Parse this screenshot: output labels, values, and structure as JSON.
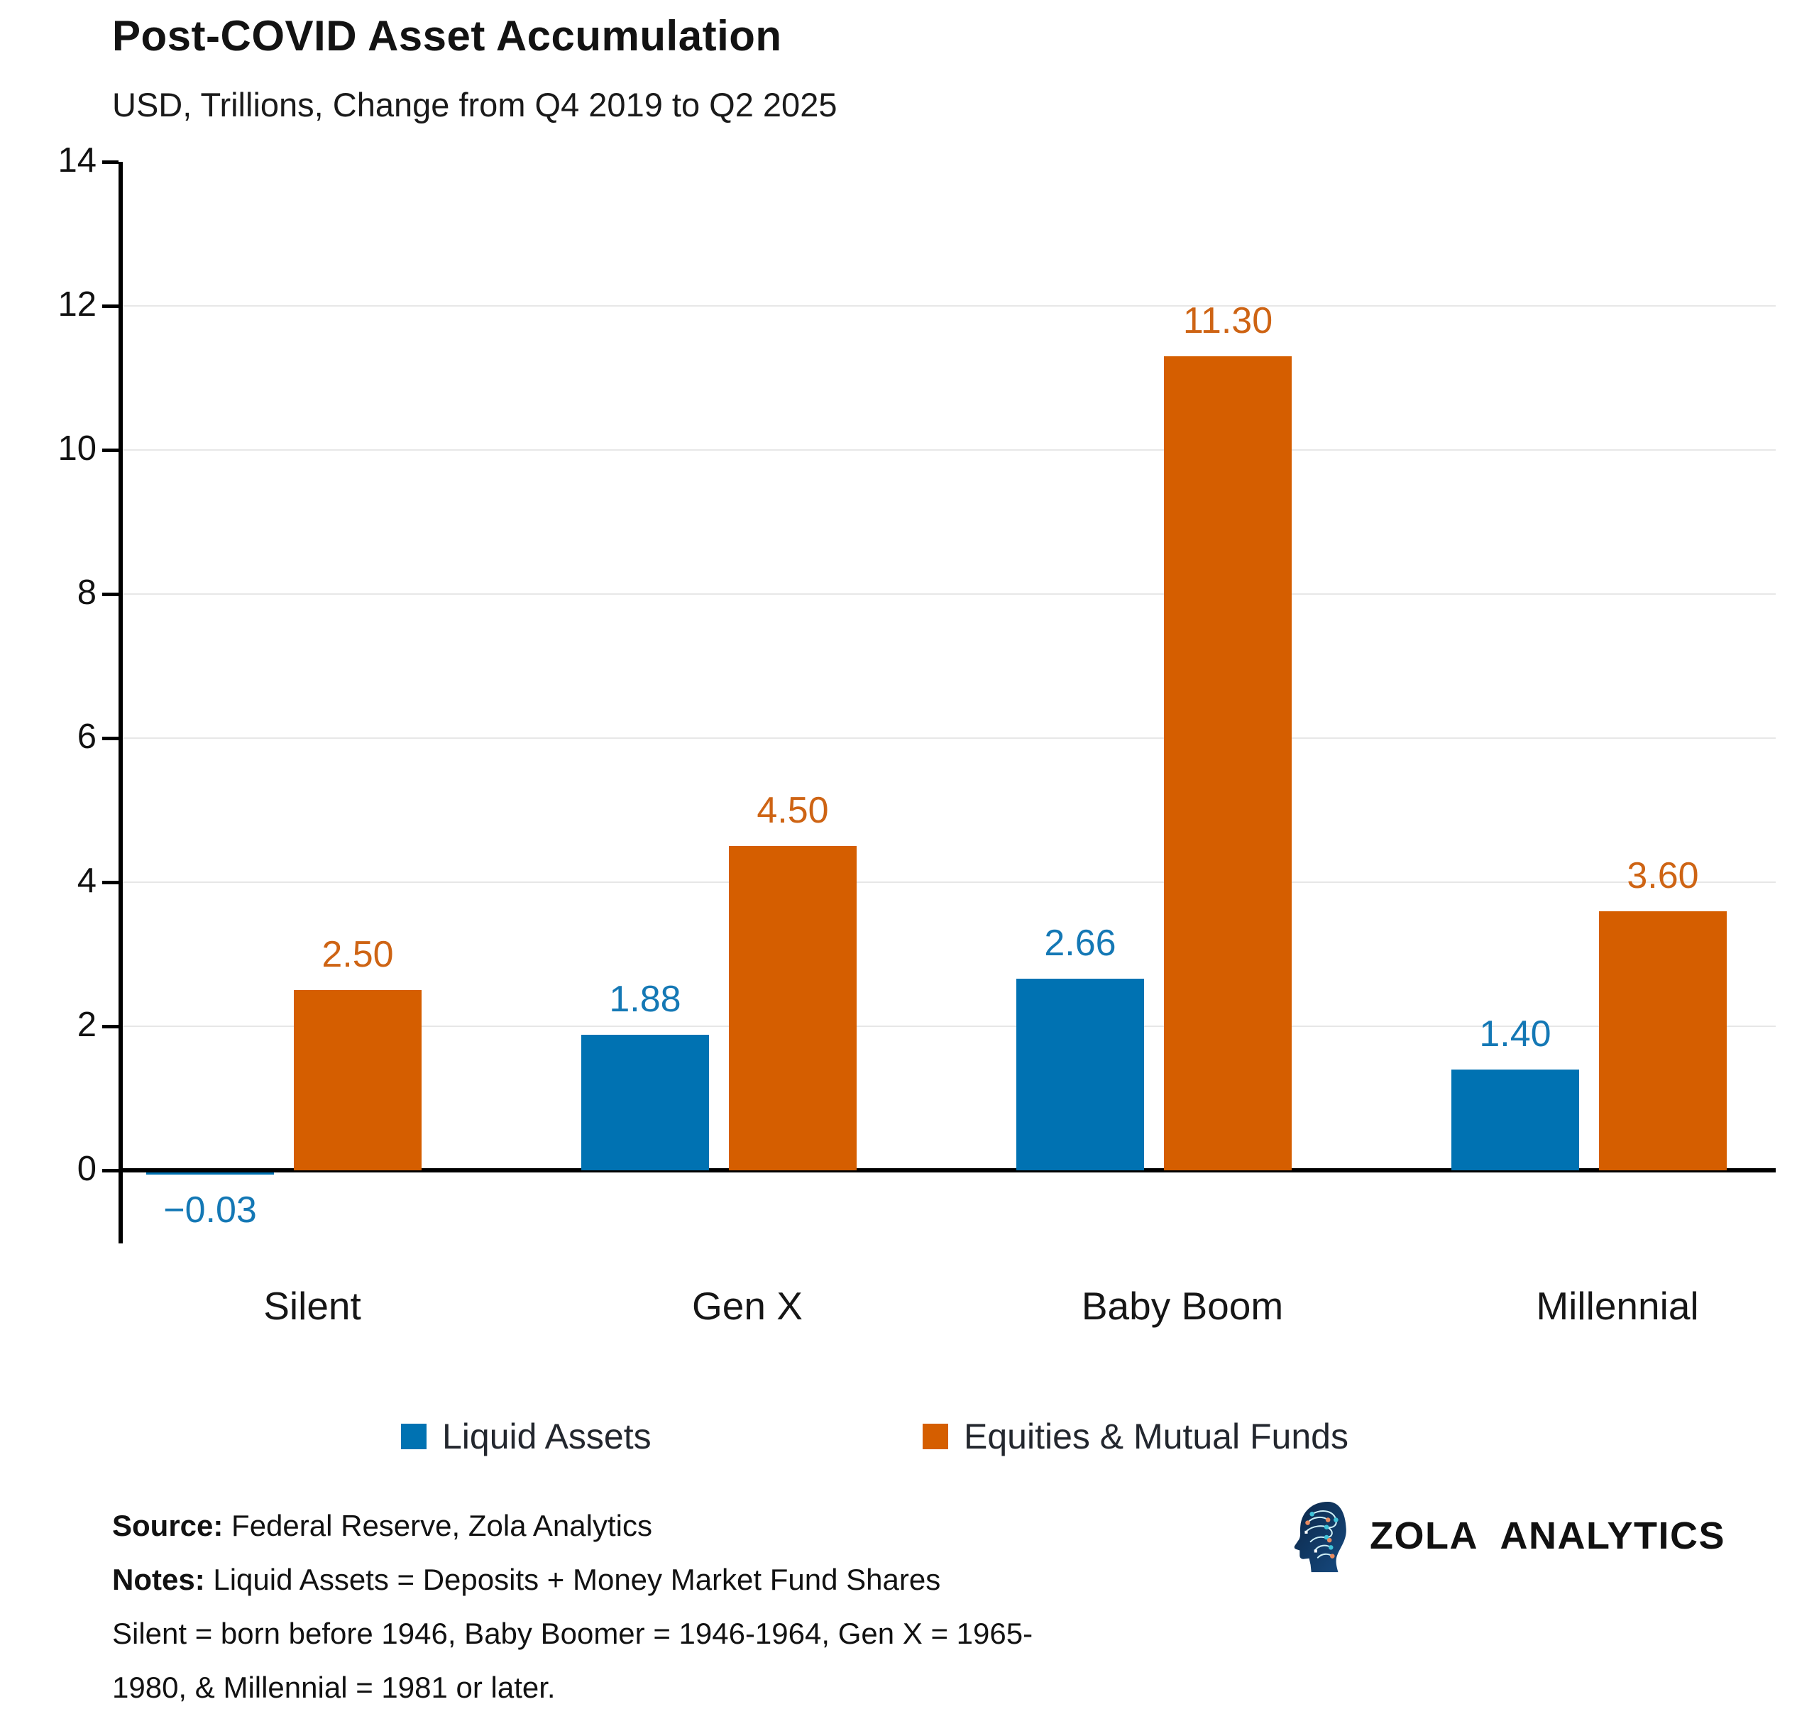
{
  "title": "Post-COVID Asset Accumulation",
  "subtitle": "USD, Trillions, Change from Q4 2019 to Q2 2025",
  "chart_data": {
    "type": "bar",
    "categories": [
      "Silent",
      "Gen X",
      "Baby Boom",
      "Millennial"
    ],
    "series": [
      {
        "name": "Liquid Assets",
        "color": "#0072B2",
        "values": [
          -0.03,
          1.88,
          2.66,
          1.4
        ],
        "labels": [
          "−0.03",
          "1.88",
          "2.66",
          "1.40"
        ]
      },
      {
        "name": "Equities & Mutual Funds",
        "color": "#D55E00",
        "values": [
          2.5,
          4.5,
          11.3,
          3.6
        ],
        "labels": [
          "2.50",
          "4.50",
          "11.30",
          "3.60"
        ]
      }
    ],
    "ylim": [
      0,
      14
    ],
    "yticks": [
      0,
      2,
      4,
      6,
      8,
      10,
      12,
      14
    ],
    "grid": "horizontal-light-gray",
    "legend_position": "bottom",
    "bar_value_labels": true
  },
  "legend": {
    "items": [
      {
        "label": "Liquid Assets",
        "color": "#0072B2"
      },
      {
        "label": "Equities & Mutual Funds",
        "color": "#D55E00"
      }
    ]
  },
  "footer": {
    "source_label": "Source:",
    "source_text": " Federal Reserve, Zola Analytics",
    "notes_label": "Notes:",
    "notes_text": " Liquid Assets = Deposits + Money Market Fund Shares",
    "notes_line2": "Silent = born before 1946, Baby Boomer = 1946-1964, Gen X = 1965-",
    "notes_line3": "1980, & Millennial = 1981 or later."
  },
  "branding": {
    "logo_text": "ZOLA ANALYTICS",
    "logo_icon": "circuit-head-icon",
    "icon_colors": {
      "head": "#12375f",
      "head_dark": "#0c2747",
      "trace": "#cdeef5",
      "node_teal": "#3fc3d8",
      "node_orange": "#e98a5f"
    }
  }
}
